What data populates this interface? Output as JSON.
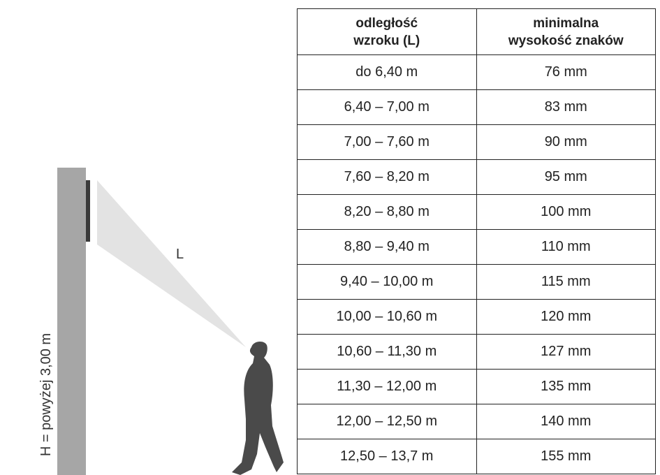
{
  "header": [
    [
      "odległość",
      "wzroku (L)"
    ],
    [
      "minimalna",
      "wysokość znaków"
    ]
  ],
  "table": {
    "rows": [
      [
        "do 6,40 m",
        "76 mm"
      ],
      [
        "6,40 – 7,00 m",
        "83 mm"
      ],
      [
        "7,00 – 7,60 m",
        "90 mm"
      ],
      [
        "7,60 – 8,20 m",
        "95 mm"
      ],
      [
        "8,20 – 8,80 m",
        "100 mm"
      ],
      [
        "8,80 – 9,40 m",
        "110 mm"
      ],
      [
        "9,40 – 10,00 m",
        "115 mm"
      ],
      [
        "10,00 – 10,60 m",
        "120 mm"
      ],
      [
        "10,60 – 11,30 m",
        "127 mm"
      ],
      [
        "11,30 – 12,00 m",
        "135 mm"
      ],
      [
        "12,00 – 12,50 m",
        "140 mm"
      ],
      [
        "12,50 – 13,7 m",
        "155 mm"
      ]
    ]
  },
  "figure": {
    "distance_label": "L",
    "height_label": "H = powyżej 3,00 m"
  }
}
